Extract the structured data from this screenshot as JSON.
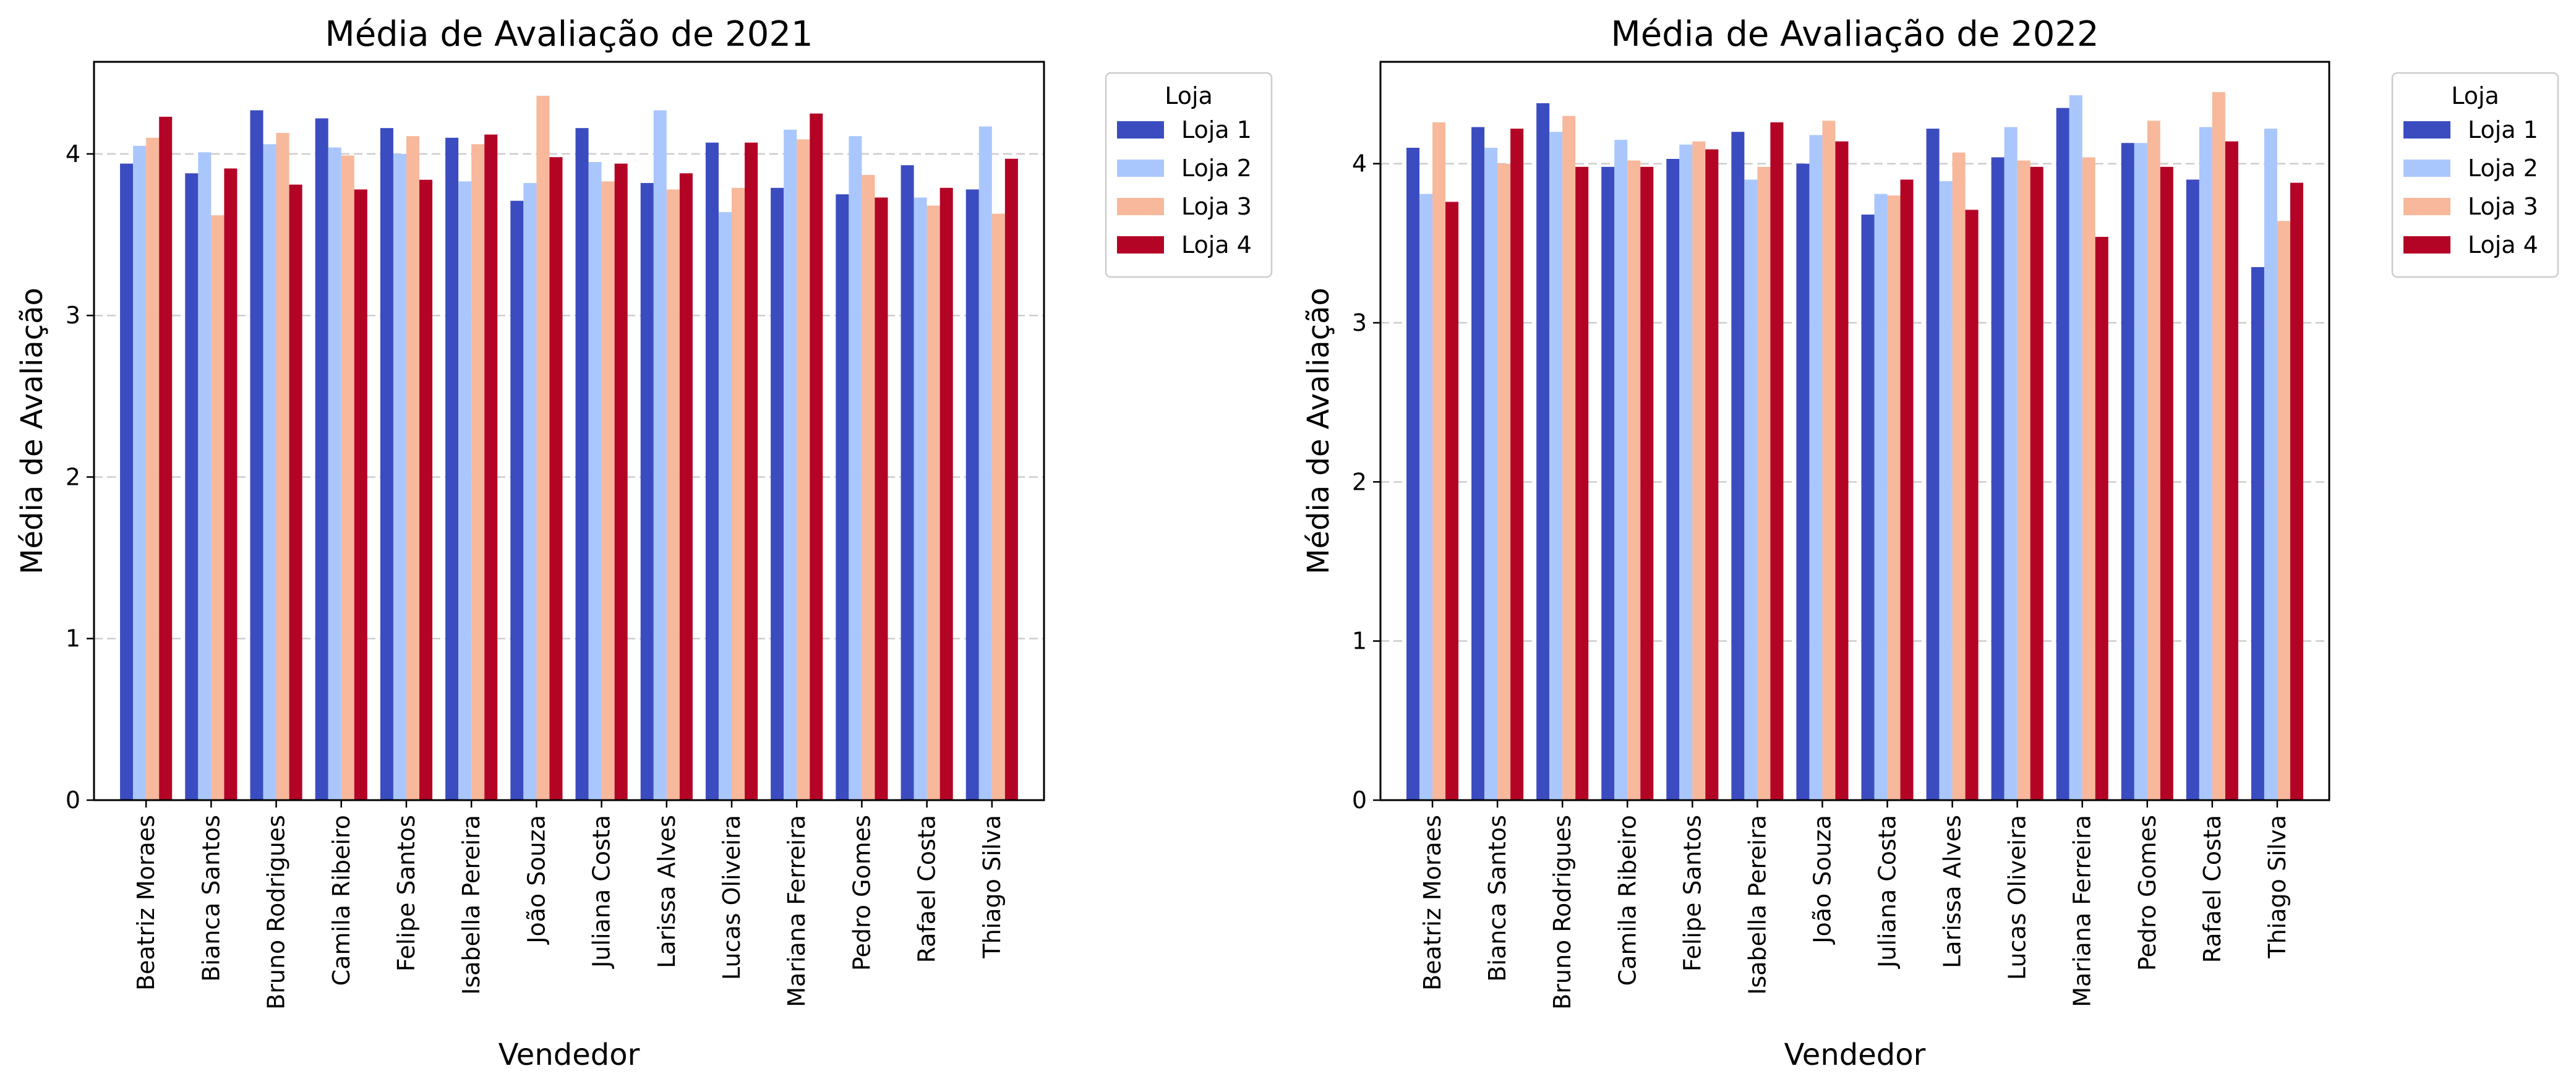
{
  "chart_data": [
    {
      "type": "bar",
      "title": "Média de Avaliação de 2021",
      "xlabel": "Vendedor",
      "ylabel": "Média de Avaliação",
      "ylim": [
        0,
        4.57
      ],
      "yticks": [
        "0",
        "1",
        "2",
        "3",
        "4"
      ],
      "grid": "horizontal dashed",
      "legend": {
        "title": "Loja",
        "placement": "outside-top-right"
      },
      "categories": [
        "Beatriz Moraes",
        "Bianca Santos",
        "Bruno Rodrigues",
        "Camila Ribeiro",
        "Felipe Santos",
        "Isabella Pereira",
        "João Souza",
        "Juliana Costa",
        "Larissa Alves",
        "Lucas Oliveira",
        "Mariana Ferreira",
        "Pedro Gomes",
        "Rafael Costa",
        "Thiago Silva"
      ],
      "series": [
        {
          "name": "Loja 1",
          "color": "#3b4cc0",
          "values": [
            3.94,
            3.88,
            4.27,
            4.22,
            4.16,
            4.1,
            3.71,
            4.16,
            3.82,
            4.07,
            3.79,
            3.75,
            3.93,
            3.78
          ]
        },
        {
          "name": "Loja 2",
          "color": "#aac7fd",
          "values": [
            4.05,
            4.01,
            4.06,
            4.04,
            4.0,
            3.83,
            3.82,
            3.95,
            4.27,
            3.64,
            4.15,
            4.11,
            3.73,
            4.17
          ]
        },
        {
          "name": "Loja 3",
          "color": "#f7b89c",
          "values": [
            4.1,
            3.62,
            4.13,
            3.99,
            4.11,
            4.06,
            4.36,
            3.83,
            3.78,
            3.79,
            4.09,
            3.87,
            3.68,
            3.63
          ]
        },
        {
          "name": "Loja 4",
          "color": "#b40426",
          "values": [
            4.23,
            3.91,
            3.81,
            3.78,
            3.84,
            4.12,
            3.98,
            3.94,
            3.88,
            4.07,
            4.25,
            3.73,
            3.79,
            3.97
          ]
        }
      ]
    },
    {
      "type": "bar",
      "title": "Média de Avaliação de 2022",
      "xlabel": "Vendedor",
      "ylabel": "Média de Avaliação",
      "ylim": [
        0,
        4.64
      ],
      "yticks": [
        "0",
        "1",
        "2",
        "3",
        "4"
      ],
      "grid": "horizontal dashed",
      "legend": {
        "title": "Loja",
        "placement": "outside-top-right"
      },
      "categories": [
        "Beatriz Moraes",
        "Bianca Santos",
        "Bruno Rodrigues",
        "Camila Ribeiro",
        "Felipe Santos",
        "Isabella Pereira",
        "João Souza",
        "Juliana Costa",
        "Larissa Alves",
        "Lucas Oliveira",
        "Mariana Ferreira",
        "Pedro Gomes",
        "Rafael Costa",
        "Thiago Silva"
      ],
      "series": [
        {
          "name": "Loja 1",
          "color": "#3b4cc0",
          "values": [
            4.1,
            4.23,
            4.38,
            3.98,
            4.03,
            4.2,
            4.0,
            3.68,
            4.22,
            4.04,
            4.35,
            4.13,
            3.9,
            3.35
          ]
        },
        {
          "name": "Loja 2",
          "color": "#aac7fd",
          "values": [
            3.81,
            4.1,
            4.2,
            4.15,
            4.12,
            3.9,
            4.18,
            3.81,
            3.89,
            4.23,
            4.43,
            4.13,
            4.23,
            4.22
          ]
        },
        {
          "name": "Loja 3",
          "color": "#f7b89c",
          "values": [
            4.26,
            4.0,
            4.3,
            4.02,
            4.14,
            3.98,
            4.27,
            3.8,
            4.07,
            4.02,
            4.04,
            4.27,
            4.45,
            3.64
          ]
        },
        {
          "name": "Loja 4",
          "color": "#b40426",
          "values": [
            3.76,
            4.22,
            3.98,
            3.98,
            4.09,
            4.26,
            4.14,
            3.9,
            3.71,
            3.98,
            3.54,
            3.98,
            4.14,
            3.88
          ]
        }
      ]
    }
  ]
}
